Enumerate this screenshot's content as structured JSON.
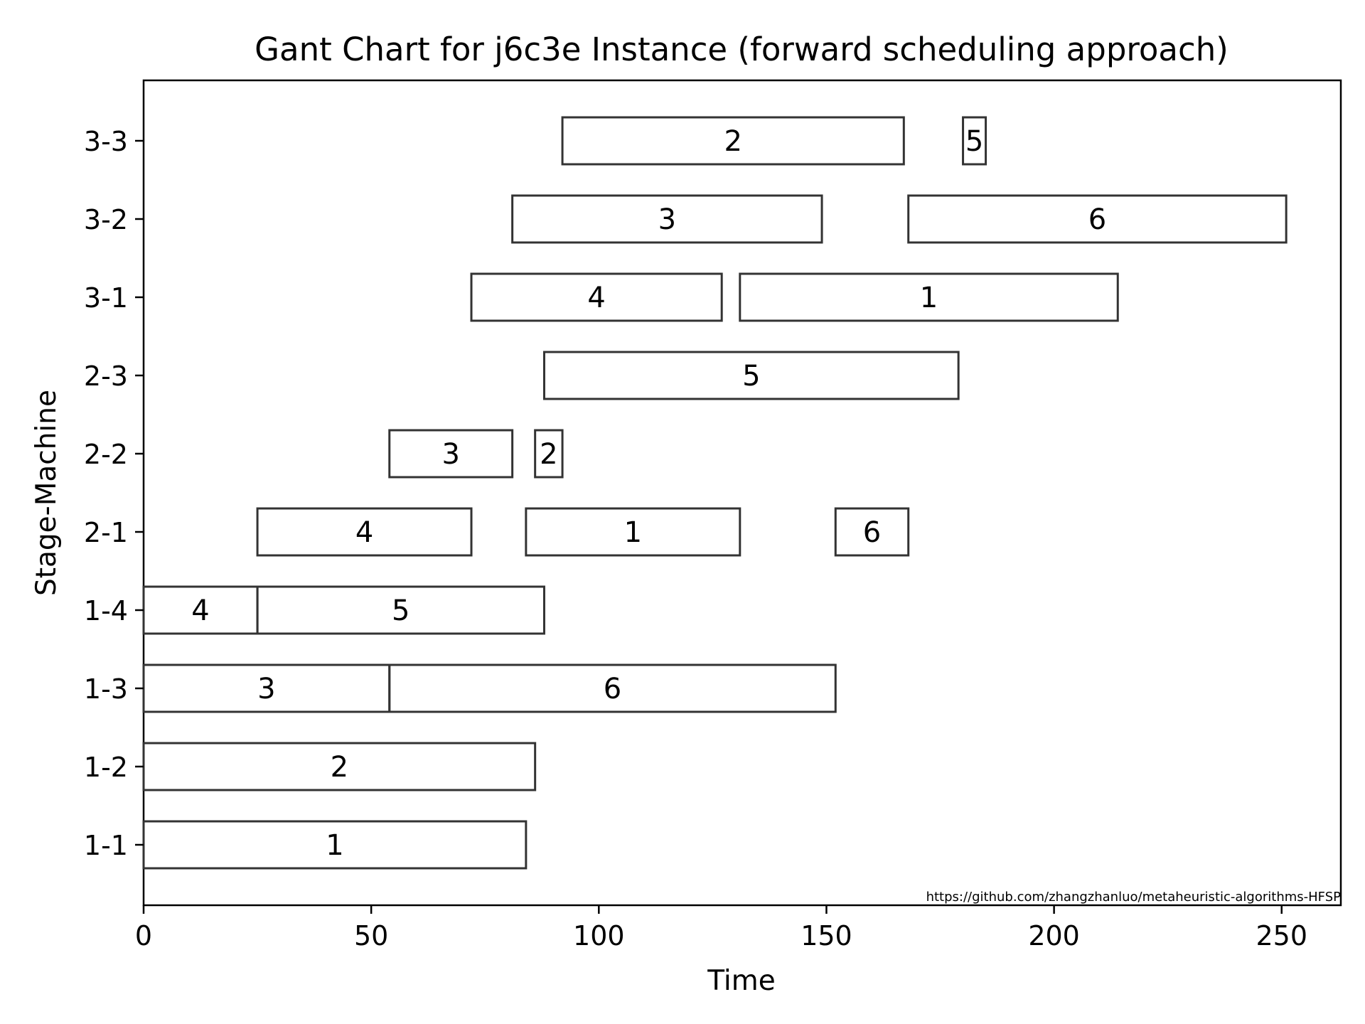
{
  "chart_data": {
    "type": "gantt",
    "title": "Gant Chart for j6c3e Instance (forward scheduling approach)",
    "xlabel": "Time",
    "ylabel": "Stage-Machine",
    "xlim": [
      0,
      263
    ],
    "xticks": [
      0,
      50,
      100,
      150,
      200,
      250
    ],
    "machines": [
      "1-1",
      "1-2",
      "1-3",
      "1-4",
      "2-1",
      "2-2",
      "2-3",
      "3-1",
      "3-2",
      "3-3"
    ],
    "tasks": [
      {
        "machine": "1-1",
        "job": "1",
        "start": 0,
        "end": 84
      },
      {
        "machine": "1-2",
        "job": "2",
        "start": 0,
        "end": 86
      },
      {
        "machine": "1-3",
        "job": "3",
        "start": 0,
        "end": 54
      },
      {
        "machine": "1-3",
        "job": "6",
        "start": 54,
        "end": 152
      },
      {
        "machine": "1-4",
        "job": "4",
        "start": 0,
        "end": 25
      },
      {
        "machine": "1-4",
        "job": "5",
        "start": 25,
        "end": 88
      },
      {
        "machine": "2-1",
        "job": "4",
        "start": 25,
        "end": 72
      },
      {
        "machine": "2-1",
        "job": "1",
        "start": 84,
        "end": 131
      },
      {
        "machine": "2-1",
        "job": "6",
        "start": 152,
        "end": 168
      },
      {
        "machine": "2-2",
        "job": "3",
        "start": 54,
        "end": 81
      },
      {
        "machine": "2-2",
        "job": "2",
        "start": 86,
        "end": 92
      },
      {
        "machine": "2-3",
        "job": "5",
        "start": 88,
        "end": 179
      },
      {
        "machine": "3-1",
        "job": "4",
        "start": 72,
        "end": 127
      },
      {
        "machine": "3-1",
        "job": "1",
        "start": 131,
        "end": 214
      },
      {
        "machine": "3-2",
        "job": "3",
        "start": 81,
        "end": 149
      },
      {
        "machine": "3-2",
        "job": "6",
        "start": 168,
        "end": 251
      },
      {
        "machine": "3-3",
        "job": "2",
        "start": 92,
        "end": 167
      },
      {
        "machine": "3-3",
        "job": "5",
        "start": 180,
        "end": 185
      }
    ],
    "watermark": "https://github.com/zhangzhanluo/metaheuristic-algorithms-HFSP",
    "grid": false,
    "legend": "none"
  }
}
